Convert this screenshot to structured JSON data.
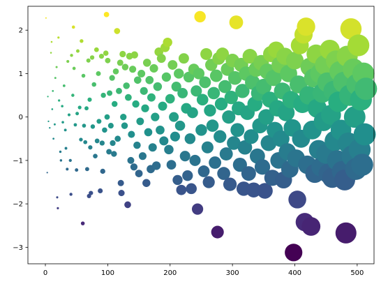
{
  "chart_data": {
    "type": "scatter",
    "title": "",
    "xlabel": "",
    "ylabel": "",
    "xlim": [
      -28,
      527
    ],
    "ylim": [
      -3.38,
      2.55
    ],
    "grid": false,
    "x_ticks": [
      0,
      100,
      200,
      300,
      400,
      500
    ],
    "y_ticks": [
      -3,
      -2,
      -1,
      0,
      1,
      2
    ],
    "x_tick_labels": [
      "0",
      "100",
      "200",
      "300",
      "400",
      "500"
    ],
    "y_tick_labels": [
      "−3",
      "−2",
      "−1",
      "0",
      "1",
      "2"
    ],
    "colormap": "viridis",
    "color_encodes": "y",
    "size_encodes": "x",
    "points": [
      {
        "x": 1,
        "y": 2.28
      },
      {
        "x": 3,
        "y": -1.28
      },
      {
        "x": 4,
        "y": 0.47
      },
      {
        "x": 5,
        "y": -0.1
      },
      {
        "x": 7,
        "y": -0.25
      },
      {
        "x": 9,
        "y": 1.48
      },
      {
        "x": 10,
        "y": 1.73
      },
      {
        "x": 11,
        "y": 0.18
      },
      {
        "x": 12,
        "y": 0.6
      },
      {
        "x": 13,
        "y": -0.5
      },
      {
        "x": 15,
        "y": -0.17
      },
      {
        "x": 16,
        "y": 0.9
      },
      {
        "x": 18,
        "y": 1.15
      },
      {
        "x": 19,
        "y": -1.85
      },
      {
        "x": 20,
        "y": -2.1
      },
      {
        "x": 21,
        "y": 1.83
      },
      {
        "x": 22,
        "y": 0.38
      },
      {
        "x": 24,
        "y": -0.8
      },
      {
        "x": 25,
        "y": -1.0
      },
      {
        "x": 27,
        "y": 0.25
      },
      {
        "x": 28,
        "y": -0.12
      },
      {
        "x": 30,
        "y": 0.72
      },
      {
        "x": 32,
        "y": -0.3
      },
      {
        "x": 33,
        "y": -0.72
      },
      {
        "x": 35,
        "y": -1.2
      },
      {
        "x": 36,
        "y": 1.28
      },
      {
        "x": 38,
        "y": 0.05
      },
      {
        "x": 40,
        "y": -1.0
      },
      {
        "x": 41,
        "y": -1.78
      },
      {
        "x": 42,
        "y": 1.42
      },
      {
        "x": 44,
        "y": 0.5
      },
      {
        "x": 45,
        "y": 2.07
      },
      {
        "x": 46,
        "y": 1.12
      },
      {
        "x": 48,
        "y": -0.18
      },
      {
        "x": 50,
        "y": -1.22
      },
      {
        "x": 51,
        "y": 0.08
      },
      {
        "x": 52,
        "y": 1.52
      },
      {
        "x": 55,
        "y": 0.22
      },
      {
        "x": 57,
        "y": -0.52
      },
      {
        "x": 58,
        "y": 1.75
      },
      {
        "x": 60,
        "y": -2.45
      },
      {
        "x": 61,
        "y": 0.95
      },
      {
        "x": 62,
        "y": -0.2
      },
      {
        "x": 64,
        "y": -0.58
      },
      {
        "x": 66,
        "y": 0.2
      },
      {
        "x": 67,
        "y": -1.2
      },
      {
        "x": 69,
        "y": 1.3
      },
      {
        "x": 70,
        "y": -1.82
      },
      {
        "x": 71,
        "y": 0.4
      },
      {
        "x": 72,
        "y": -0.7
      },
      {
        "x": 73,
        "y": -1.75
      },
      {
        "x": 75,
        "y": 1.37
      },
      {
        "x": 76,
        "y": -0.22
      },
      {
        "x": 78,
        "y": 0.75
      },
      {
        "x": 80,
        "y": -0.9
      },
      {
        "x": 82,
        "y": 1.55
      },
      {
        "x": 83,
        "y": -0.55
      },
      {
        "x": 85,
        "y": 1.0
      },
      {
        "x": 86,
        "y": -0.1
      },
      {
        "x": 88,
        "y": -1.7
      },
      {
        "x": 90,
        "y": 1.4
      },
      {
        "x": 91,
        "y": -0.6
      },
      {
        "x": 92,
        "y": -1.25
      },
      {
        "x": 93,
        "y": 0.5
      },
      {
        "x": 95,
        "y": -0.3
      },
      {
        "x": 97,
        "y": 1.47
      },
      {
        "x": 98,
        "y": 2.36
      },
      {
        "x": 99,
        "y": 0.0
      },
      {
        "x": 100,
        "y": 1.3
      },
      {
        "x": 102,
        "y": -0.8
      },
      {
        "x": 103,
        "y": 0.55
      },
      {
        "x": 105,
        "y": -0.2
      },
      {
        "x": 107,
        "y": 0.9
      },
      {
        "x": 108,
        "y": -0.6
      },
      {
        "x": 110,
        "y": -0.85
      },
      {
        "x": 111,
        "y": 0.3
      },
      {
        "x": 113,
        "y": 1.05
      },
      {
        "x": 115,
        "y": 1.98
      },
      {
        "x": 116,
        "y": -0.5
      },
      {
        "x": 118,
        "y": 0.6
      },
      {
        "x": 120,
        "y": 1.25
      },
      {
        "x": 121,
        "y": -1.52
      },
      {
        "x": 122,
        "y": -1.75
      },
      {
        "x": 124,
        "y": 1.45
      },
      {
        "x": 125,
        "y": 0.0
      },
      {
        "x": 127,
        "y": -0.2
      },
      {
        "x": 128,
        "y": 1.15
      },
      {
        "x": 130,
        "y": 0.72
      },
      {
        "x": 132,
        "y": -2.02
      },
      {
        "x": 133,
        "y": 0.45
      },
      {
        "x": 135,
        "y": 1.4
      },
      {
        "x": 137,
        "y": -1.0
      },
      {
        "x": 138,
        "y": -0.4
      },
      {
        "x": 140,
        "y": 1.1
      },
      {
        "x": 142,
        "y": -1.15
      },
      {
        "x": 143,
        "y": 1.43
      },
      {
        "x": 145,
        "y": 0.3
      },
      {
        "x": 147,
        "y": -0.65
      },
      {
        "x": 148,
        "y": 0.85
      },
      {
        "x": 150,
        "y": -1.3
      },
      {
        "x": 152,
        "y": -0.1
      },
      {
        "x": 154,
        "y": 1.0
      },
      {
        "x": 156,
        "y": -0.9
      },
      {
        "x": 158,
        "y": 0.6
      },
      {
        "x": 160,
        "y": 0.2
      },
      {
        "x": 162,
        "y": -1.52
      },
      {
        "x": 163,
        "y": 1.25
      },
      {
        "x": 165,
        "y": -0.35
      },
      {
        "x": 167,
        "y": 0.85
      },
      {
        "x": 169,
        "y": -1.2
      },
      {
        "x": 170,
        "y": 0.45
      },
      {
        "x": 172,
        "y": -0.7
      },
      {
        "x": 174,
        "y": 1.12
      },
      {
        "x": 176,
        "y": 0.0
      },
      {
        "x": 178,
        "y": -1.12
      },
      {
        "x": 180,
        "y": 0.7
      },
      {
        "x": 182,
        "y": 1.5
      },
      {
        "x": 184,
        "y": -0.3
      },
      {
        "x": 186,
        "y": 1.35
      },
      {
        "x": 188,
        "y": 0.25
      },
      {
        "x": 190,
        "y": -0.55
      },
      {
        "x": 192,
        "y": 1.6
      },
      {
        "x": 194,
        "y": 0.92
      },
      {
        "x": 196,
        "y": 1.72
      },
      {
        "x": 198,
        "y": -0.75
      },
      {
        "x": 200,
        "y": 0.42
      },
      {
        "x": 202,
        "y": -1.1
      },
      {
        "x": 204,
        "y": 1.2
      },
      {
        "x": 206,
        "y": 0.0
      },
      {
        "x": 208,
        "y": -0.45
      },
      {
        "x": 210,
        "y": 0.7
      },
      {
        "x": 212,
        "y": -1.45
      },
      {
        "x": 214,
        "y": 1.0
      },
      {
        "x": 216,
        "y": -0.2
      },
      {
        "x": 218,
        "y": -1.68
      },
      {
        "x": 220,
        "y": 0.55
      },
      {
        "x": 222,
        "y": 1.35
      },
      {
        "x": 224,
        "y": -0.9
      },
      {
        "x": 226,
        "y": 0.2
      },
      {
        "x": 228,
        "y": -1.35
      },
      {
        "x": 230,
        "y": 0.92
      },
      {
        "x": 232,
        "y": -0.5
      },
      {
        "x": 234,
        "y": -1.65
      },
      {
        "x": 236,
        "y": 0.1
      },
      {
        "x": 238,
        "y": 1.1
      },
      {
        "x": 240,
        "y": -1.0
      },
      {
        "x": 242,
        "y": 0.6
      },
      {
        "x": 244,
        "y": -2.12
      },
      {
        "x": 246,
        "y": 1.0
      },
      {
        "x": 248,
        "y": 2.31
      },
      {
        "x": 250,
        "y": -0.3
      },
      {
        "x": 252,
        "y": 0.4
      },
      {
        "x": 254,
        "y": -1.25
      },
      {
        "x": 256,
        "y": 0.8
      },
      {
        "x": 258,
        "y": 1.45
      },
      {
        "x": 260,
        "y": -0.7
      },
      {
        "x": 262,
        "y": -1.5
      },
      {
        "x": 264,
        "y": 0.15
      },
      {
        "x": 266,
        "y": 1.2
      },
      {
        "x": 268,
        "y": -0.2
      },
      {
        "x": 270,
        "y": 0.55
      },
      {
        "x": 272,
        "y": -1.05
      },
      {
        "x": 274,
        "y": 0.95
      },
      {
        "x": 276,
        "y": -2.65
      },
      {
        "x": 278,
        "y": 1.35
      },
      {
        "x": 280,
        "y": -0.45
      },
      {
        "x": 282,
        "y": 0.3
      },
      {
        "x": 284,
        "y": 1.45
      },
      {
        "x": 286,
        "y": -1.3
      },
      {
        "x": 288,
        "y": 0.7
      },
      {
        "x": 290,
        "y": -0.85
      },
      {
        "x": 292,
        "y": 1.1
      },
      {
        "x": 294,
        "y": 0.0
      },
      {
        "x": 296,
        "y": -1.55
      },
      {
        "x": 298,
        "y": 0.45
      },
      {
        "x": 300,
        "y": 1.3
      },
      {
        "x": 302,
        "y": -0.6
      },
      {
        "x": 304,
        "y": 0.9
      },
      {
        "x": 306,
        "y": 2.18
      },
      {
        "x": 308,
        "y": -0.3
      },
      {
        "x": 310,
        "y": 0.2
      },
      {
        "x": 312,
        "y": -1.1
      },
      {
        "x": 314,
        "y": 1.2
      },
      {
        "x": 316,
        "y": 0.6
      },
      {
        "x": 318,
        "y": -1.65
      },
      {
        "x": 320,
        "y": -0.7
      },
      {
        "x": 322,
        "y": 1.0
      },
      {
        "x": 324,
        "y": 0.1
      },
      {
        "x": 326,
        "y": -1.3
      },
      {
        "x": 328,
        "y": 1.4
      },
      {
        "x": 330,
        "y": -0.45
      },
      {
        "x": 332,
        "y": 0.8
      },
      {
        "x": 334,
        "y": -1.68
      },
      {
        "x": 336,
        "y": 0.3
      },
      {
        "x": 338,
        "y": 1.1
      },
      {
        "x": 340,
        "y": -0.9
      },
      {
        "x": 342,
        "y": 0.55
      },
      {
        "x": 344,
        "y": -0.2
      },
      {
        "x": 346,
        "y": 1.25
      },
      {
        "x": 348,
        "y": -1.15
      },
      {
        "x": 350,
        "y": 0.7
      },
      {
        "x": 352,
        "y": -1.7
      },
      {
        "x": 354,
        "y": 0.0
      },
      {
        "x": 356,
        "y": 1.05
      },
      {
        "x": 358,
        "y": -0.6
      },
      {
        "x": 360,
        "y": 0.4
      },
      {
        "x": 362,
        "y": 1.45
      },
      {
        "x": 364,
        "y": -1.4
      },
      {
        "x": 366,
        "y": 0.9
      },
      {
        "x": 368,
        "y": -0.3
      },
      {
        "x": 370,
        "y": 1.55
      },
      {
        "x": 372,
        "y": 0.2
      },
      {
        "x": 374,
        "y": -1.0
      },
      {
        "x": 376,
        "y": 1.2
      },
      {
        "x": 378,
        "y": -0.5
      },
      {
        "x": 380,
        "y": 0.6
      },
      {
        "x": 382,
        "y": -1.45
      },
      {
        "x": 384,
        "y": 1.4
      },
      {
        "x": 386,
        "y": 0.1
      },
      {
        "x": 388,
        "y": -0.8
      },
      {
        "x": 390,
        "y": 1.0
      },
      {
        "x": 392,
        "y": -1.2
      },
      {
        "x": 394,
        "y": 0.4
      },
      {
        "x": 396,
        "y": -0.25
      },
      {
        "x": 398,
        "y": -3.12
      },
      {
        "x": 400,
        "y": 1.3
      },
      {
        "x": 402,
        "y": -0.95
      },
      {
        "x": 404,
        "y": -1.9
      },
      {
        "x": 406,
        "y": 0.75
      },
      {
        "x": 408,
        "y": 1.65
      },
      {
        "x": 410,
        "y": -0.5
      },
      {
        "x": 412,
        "y": 0.3
      },
      {
        "x": 414,
        "y": 1.9
      },
      {
        "x": 416,
        "y": -2.42
      },
      {
        "x": 418,
        "y": 2.08
      },
      {
        "x": 420,
        "y": -1.1
      },
      {
        "x": 422,
        "y": 0.5
      },
      {
        "x": 424,
        "y": 1.15
      },
      {
        "x": 426,
        "y": -2.52
      },
      {
        "x": 428,
        "y": -0.3
      },
      {
        "x": 430,
        "y": 0.9
      },
      {
        "x": 432,
        "y": -1.3
      },
      {
        "x": 434,
        "y": 1.45
      },
      {
        "x": 436,
        "y": 0.2
      },
      {
        "x": 438,
        "y": -0.75
      },
      {
        "x": 440,
        "y": 1.0
      },
      {
        "x": 442,
        "y": -1.15
      },
      {
        "x": 444,
        "y": 0.55
      },
      {
        "x": 446,
        "y": -0.1
      },
      {
        "x": 448,
        "y": 1.2
      },
      {
        "x": 450,
        "y": -0.85
      },
      {
        "x": 452,
        "y": 0.8
      },
      {
        "x": 454,
        "y": -1.3
      },
      {
        "x": 456,
        "y": 1.55
      },
      {
        "x": 458,
        "y": 0.05
      },
      {
        "x": 460,
        "y": -1.4
      },
      {
        "x": 462,
        "y": 0.6
      },
      {
        "x": 464,
        "y": -0.55
      },
      {
        "x": 466,
        "y": 1.3
      },
      {
        "x": 468,
        "y": -1.0
      },
      {
        "x": 470,
        "y": 0.35
      },
      {
        "x": 472,
        "y": 1.05
      },
      {
        "x": 474,
        "y": -0.3
      },
      {
        "x": 476,
        "y": -1.25
      },
      {
        "x": 478,
        "y": 0.8
      },
      {
        "x": 480,
        "y": -1.45
      },
      {
        "x": 482,
        "y": -2.67
      },
      {
        "x": 484,
        "y": 1.4
      },
      {
        "x": 486,
        "y": -0.6
      },
      {
        "x": 488,
        "y": 0.5
      },
      {
        "x": 490,
        "y": 2.03
      },
      {
        "x": 492,
        "y": -0.9
      },
      {
        "x": 494,
        "y": 1.1
      },
      {
        "x": 496,
        "y": 0.0
      },
      {
        "x": 498,
        "y": -1.2
      },
      {
        "x": 500,
        "y": 0.75
      },
      {
        "x": 502,
        "y": 1.65
      },
      {
        "x": 504,
        "y": -0.75
      },
      {
        "x": 506,
        "y": 0.4
      },
      {
        "x": 508,
        "y": -1.1
      },
      {
        "x": 510,
        "y": 1.0
      },
      {
        "x": 512,
        "y": -0.4
      },
      {
        "x": 514,
        "y": 0.65
      }
    ]
  }
}
